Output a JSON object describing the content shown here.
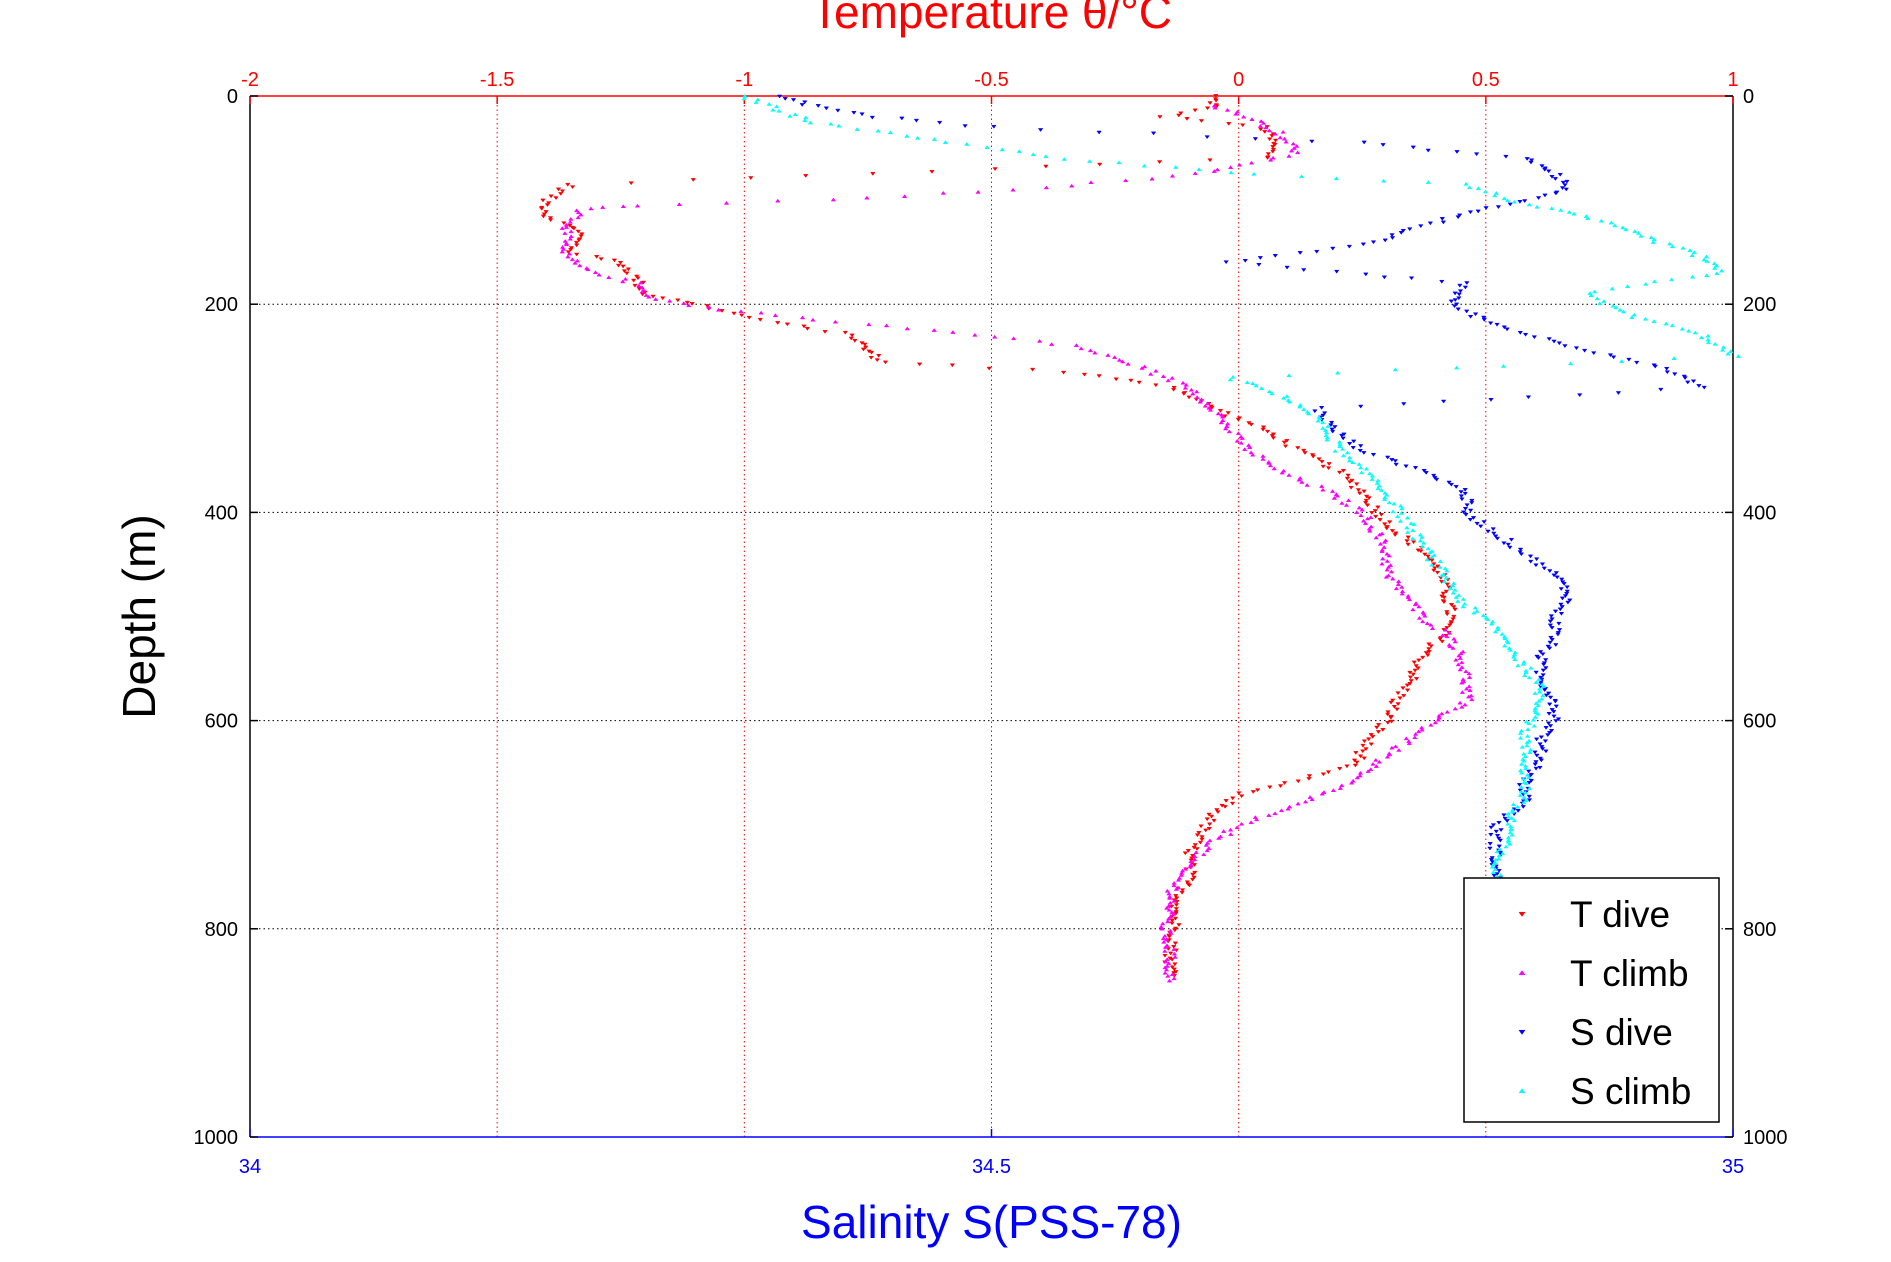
{
  "chart_data": {
    "type": "scatter",
    "title": "Temperature θ/°C",
    "xlabel_bottom": "Salinity S(PSS-78)",
    "ylabel": "Depth (m)",
    "x_top": {
      "label": "Temperature θ/°C",
      "range": [
        -2,
        1
      ],
      "ticks": [
        -2,
        -1.5,
        -1,
        -0.5,
        0,
        0.5,
        1
      ],
      "tick_labels": [
        "-2",
        "-1.5",
        "-1",
        "-0.5",
        "0",
        "0.5",
        "1"
      ],
      "color": "#ff0000"
    },
    "x_bottom": {
      "label": "Salinity S(PSS-78)",
      "range": [
        34,
        35
      ],
      "ticks": [
        34,
        34.5,
        35
      ],
      "tick_labels": [
        "34",
        "34.5",
        "35"
      ],
      "color": "#0000ff"
    },
    "y": {
      "label": "Depth (m)",
      "range": [
        0,
        1000
      ],
      "reversed": true,
      "ticks": [
        0,
        200,
        400,
        600,
        800,
        1000
      ],
      "tick_labels": [
        "0",
        "200",
        "400",
        "600",
        "800",
        "1000"
      ]
    },
    "grid": true,
    "legend": {
      "placement": "bottom-right"
    },
    "series": [
      {
        "name": "T dive",
        "axis": "temperature",
        "color": "#ff0000",
        "marker": "triangle-down",
        "points": [
          [
            -0.05,
            0
          ],
          [
            -0.05,
            10
          ],
          [
            -0.15,
            20
          ],
          [
            0.05,
            30
          ],
          [
            0.07,
            45
          ],
          [
            0.06,
            60
          ],
          [
            -0.5,
            70
          ],
          [
            -1.35,
            85
          ],
          [
            -1.4,
            100
          ],
          [
            -1.4,
            115
          ],
          [
            -1.33,
            130
          ],
          [
            -1.35,
            150
          ],
          [
            -1.25,
            160
          ],
          [
            -1.22,
            175
          ],
          [
            -1.2,
            190
          ],
          [
            -1.1,
            200
          ],
          [
            -0.97,
            215
          ],
          [
            -0.78,
            230
          ],
          [
            -0.75,
            245
          ],
          [
            -0.72,
            255
          ],
          [
            -0.35,
            265
          ],
          [
            -0.13,
            280
          ],
          [
            -0.05,
            300
          ],
          [
            0.05,
            320
          ],
          [
            0.12,
            340
          ],
          [
            0.2,
            360
          ],
          [
            0.25,
            380
          ],
          [
            0.28,
            400
          ],
          [
            0.32,
            420
          ],
          [
            0.38,
            440
          ],
          [
            0.41,
            460
          ],
          [
            0.42,
            480
          ],
          [
            0.43,
            500
          ],
          [
            0.41,
            520
          ],
          [
            0.37,
            540
          ],
          [
            0.35,
            560
          ],
          [
            0.32,
            580
          ],
          [
            0.3,
            600
          ],
          [
            0.26,
            620
          ],
          [
            0.24,
            640
          ],
          [
            0.1,
            660
          ],
          [
            0.0,
            670
          ],
          [
            -0.05,
            690
          ],
          [
            -0.08,
            710
          ],
          [
            -0.1,
            730
          ],
          [
            -0.1,
            750
          ],
          [
            -0.12,
            770
          ],
          [
            -0.13,
            790
          ],
          [
            -0.13,
            810
          ],
          [
            -0.14,
            830
          ],
          [
            -0.13,
            845
          ]
        ]
      },
      {
        "name": "T climb",
        "axis": "temperature",
        "color": "#ff00ff",
        "marker": "triangle-up",
        "points": [
          [
            -0.05,
            10
          ],
          [
            0.02,
            20
          ],
          [
            0.08,
            35
          ],
          [
            0.12,
            55
          ],
          [
            -0.08,
            75
          ],
          [
            -0.45,
            90
          ],
          [
            -0.83,
            100
          ],
          [
            -1.22,
            105
          ],
          [
            -1.33,
            110
          ],
          [
            -1.36,
            130
          ],
          [
            -1.37,
            150
          ],
          [
            -1.33,
            165
          ],
          [
            -1.22,
            180
          ],
          [
            -1.18,
            195
          ],
          [
            -1.05,
            205
          ],
          [
            -0.85,
            215
          ],
          [
            -0.62,
            225
          ],
          [
            -0.33,
            240
          ],
          [
            -0.2,
            260
          ],
          [
            -0.1,
            280
          ],
          [
            -0.05,
            300
          ],
          [
            -0.02,
            320
          ],
          [
            0.02,
            340
          ],
          [
            0.08,
            360
          ],
          [
            0.18,
            380
          ],
          [
            0.25,
            400
          ],
          [
            0.28,
            420
          ],
          [
            0.3,
            440
          ],
          [
            0.3,
            460
          ],
          [
            0.34,
            480
          ],
          [
            0.37,
            500
          ],
          [
            0.43,
            520
          ],
          [
            0.45,
            540
          ],
          [
            0.46,
            560
          ],
          [
            0.46,
            580
          ],
          [
            0.4,
            600
          ],
          [
            0.34,
            620
          ],
          [
            0.28,
            640
          ],
          [
            0.22,
            660
          ],
          [
            0.12,
            680
          ],
          [
            0.0,
            700
          ],
          [
            -0.06,
            720
          ],
          [
            -0.11,
            740
          ],
          [
            -0.13,
            760
          ],
          [
            -0.14,
            780
          ],
          [
            -0.15,
            800
          ],
          [
            -0.14,
            820
          ],
          [
            -0.14,
            840
          ],
          [
            -0.14,
            850
          ]
        ]
      },
      {
        "name": "S dive",
        "axis": "salinity",
        "color": "#0000ff",
        "marker": "triangle-down",
        "points": [
          [
            34.36,
            0
          ],
          [
            34.38,
            10
          ],
          [
            34.42,
            20
          ],
          [
            34.5,
            30
          ],
          [
            34.75,
            45
          ],
          [
            34.86,
            60
          ],
          [
            34.88,
            75
          ],
          [
            34.89,
            90
          ],
          [
            34.86,
            100
          ],
          [
            34.83,
            110
          ],
          [
            34.79,
            125
          ],
          [
            34.76,
            140
          ],
          [
            34.66,
            160
          ],
          [
            34.82,
            180
          ],
          [
            34.81,
            200
          ],
          [
            34.84,
            220
          ],
          [
            34.89,
            240
          ],
          [
            34.95,
            260
          ],
          [
            34.98,
            280
          ],
          [
            34.72,
            300
          ],
          [
            34.73,
            320
          ],
          [
            34.75,
            340
          ],
          [
            34.79,
            360
          ],
          [
            34.82,
            380
          ],
          [
            34.82,
            400
          ],
          [
            34.84,
            420
          ],
          [
            34.86,
            440
          ],
          [
            34.88,
            460
          ],
          [
            34.89,
            480
          ],
          [
            34.88,
            500
          ],
          [
            34.88,
            520
          ],
          [
            34.87,
            540
          ],
          [
            34.87,
            560
          ],
          [
            34.88,
            580
          ],
          [
            34.88,
            600
          ],
          [
            34.87,
            620
          ],
          [
            34.87,
            640
          ],
          [
            34.86,
            660
          ],
          [
            34.86,
            680
          ],
          [
            34.84,
            700
          ],
          [
            34.84,
            720
          ],
          [
            34.84,
            740
          ],
          [
            34.84,
            760
          ],
          [
            34.84,
            780
          ],
          [
            34.84,
            800
          ],
          [
            34.84,
            820
          ],
          [
            34.84,
            840
          ],
          [
            34.84,
            850
          ]
        ]
      },
      {
        "name": "S climb",
        "axis": "salinity",
        "color": "#00ffff",
        "marker": "triangle-up",
        "points": [
          [
            34.33,
            0
          ],
          [
            34.36,
            15
          ],
          [
            34.38,
            25
          ],
          [
            34.45,
            40
          ],
          [
            34.55,
            60
          ],
          [
            34.68,
            75
          ],
          [
            34.82,
            85
          ],
          [
            34.85,
            100
          ],
          [
            34.88,
            110
          ],
          [
            34.91,
            120
          ],
          [
            34.93,
            130
          ],
          [
            34.95,
            140
          ],
          [
            34.98,
            155
          ],
          [
            34.99,
            170
          ],
          [
            34.9,
            190
          ],
          [
            34.93,
            210
          ],
          [
            34.98,
            230
          ],
          [
            35.0,
            250
          ],
          [
            34.66,
            270
          ],
          [
            34.7,
            290
          ],
          [
            34.72,
            310
          ],
          [
            34.73,
            330
          ],
          [
            34.74,
            350
          ],
          [
            34.76,
            370
          ],
          [
            34.77,
            390
          ],
          [
            34.78,
            410
          ],
          [
            34.79,
            430
          ],
          [
            34.8,
            450
          ],
          [
            34.81,
            470
          ],
          [
            34.82,
            490
          ],
          [
            34.84,
            510
          ],
          [
            34.85,
            530
          ],
          [
            34.86,
            550
          ],
          [
            34.87,
            570
          ],
          [
            34.87,
            590
          ],
          [
            34.86,
            610
          ],
          [
            34.86,
            630
          ],
          [
            34.86,
            650
          ],
          [
            34.86,
            670
          ],
          [
            34.85,
            690
          ],
          [
            34.85,
            710
          ],
          [
            34.84,
            730
          ],
          [
            34.84,
            750
          ],
          [
            34.84,
            770
          ],
          [
            34.84,
            790
          ],
          [
            34.84,
            810
          ],
          [
            34.84,
            830
          ],
          [
            34.84,
            850
          ]
        ]
      }
    ]
  }
}
